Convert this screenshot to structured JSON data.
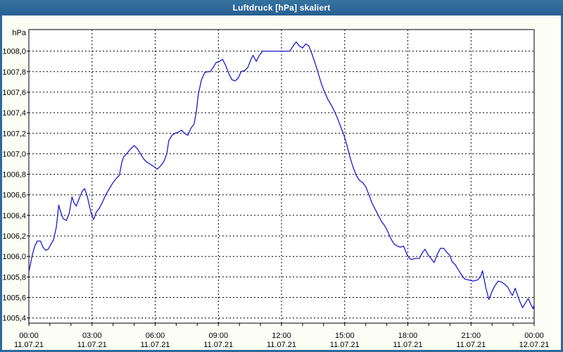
{
  "title_bar": {
    "title": "Luftdruck [hPa] skaliert",
    "bg_color": "#2b6a9e",
    "text_color": "#ffffff"
  },
  "chart_data": {
    "type": "line",
    "title": "Luftdruck [hPa] skaliert",
    "ylabel": "hPa",
    "grid": "dashed",
    "legend": "none",
    "plot_bg": "#ffffff",
    "panel_bg": "#fcfdf5",
    "line_color": "#1b1bd1",
    "ylim": [
      1005.35,
      1008.21
    ],
    "xlim_hours": [
      0,
      24
    ],
    "minor_x_tick_every_hours": 1,
    "yticks": [
      {
        "value": 1008.0,
        "label": "1008,0"
      },
      {
        "value": 1007.8,
        "label": "1007,8"
      },
      {
        "value": 1007.6,
        "label": "1007,6"
      },
      {
        "value": 1007.4,
        "label": "1007,4"
      },
      {
        "value": 1007.2,
        "label": "1007,2"
      },
      {
        "value": 1007.0,
        "label": "1007,0"
      },
      {
        "value": 1006.8,
        "label": "1006,8"
      },
      {
        "value": 1006.6,
        "label": "1006,6"
      },
      {
        "value": 1006.4,
        "label": "1006,4"
      },
      {
        "value": 1006.2,
        "label": "1006,2"
      },
      {
        "value": 1006.0,
        "label": "1006,0"
      },
      {
        "value": 1005.8,
        "label": "1005,8"
      },
      {
        "value": 1005.6,
        "label": "1005,6"
      },
      {
        "value": 1005.4,
        "label": "1005,4"
      }
    ],
    "xticks": [
      {
        "hour": 0,
        "time": "00:00",
        "date": "11.07.21"
      },
      {
        "hour": 3,
        "time": "03:00",
        "date": "11.07.21"
      },
      {
        "hour": 6,
        "time": "06:00",
        "date": "11.07.21"
      },
      {
        "hour": 9,
        "time": "09:00",
        "date": "11.07.21"
      },
      {
        "hour": 12,
        "time": "12:00",
        "date": "11.07.21"
      },
      {
        "hour": 15,
        "time": "15:00",
        "date": "11.07.21"
      },
      {
        "hour": 18,
        "time": "18:00",
        "date": "11.07.21"
      },
      {
        "hour": 21,
        "time": "21:00",
        "date": "11.07.21"
      },
      {
        "hour": 24,
        "time": "00:00",
        "date": "12.07.21"
      }
    ],
    "series": [
      {
        "name": "Luftdruck [hPa]",
        "color": "#1b1bd1",
        "points": [
          [
            0.0,
            1005.85
          ],
          [
            0.08,
            1005.93
          ],
          [
            0.17,
            1006.02
          ],
          [
            0.28,
            1006.1
          ],
          [
            0.4,
            1006.15
          ],
          [
            0.55,
            1006.15
          ],
          [
            0.67,
            1006.09
          ],
          [
            0.8,
            1006.06
          ],
          [
            0.92,
            1006.07
          ],
          [
            1.05,
            1006.12
          ],
          [
            1.17,
            1006.16
          ],
          [
            1.3,
            1006.28
          ],
          [
            1.42,
            1006.5
          ],
          [
            1.5,
            1006.44
          ],
          [
            1.62,
            1006.37
          ],
          [
            1.78,
            1006.35
          ],
          [
            1.92,
            1006.42
          ],
          [
            2.05,
            1006.58
          ],
          [
            2.15,
            1006.52
          ],
          [
            2.25,
            1006.49
          ],
          [
            2.4,
            1006.57
          ],
          [
            2.55,
            1006.64
          ],
          [
            2.65,
            1006.66
          ],
          [
            2.78,
            1006.58
          ],
          [
            2.9,
            1006.47
          ],
          [
            3.0,
            1006.39
          ],
          [
            3.08,
            1006.36
          ],
          [
            3.2,
            1006.43
          ],
          [
            3.35,
            1006.47
          ],
          [
            3.5,
            1006.53
          ],
          [
            3.65,
            1006.6
          ],
          [
            3.85,
            1006.67
          ],
          [
            4.0,
            1006.72
          ],
          [
            4.15,
            1006.76
          ],
          [
            4.3,
            1006.79
          ],
          [
            4.42,
            1006.92
          ],
          [
            4.5,
            1006.97
          ],
          [
            4.65,
            1007.0
          ],
          [
            4.8,
            1007.04
          ],
          [
            5.0,
            1007.08
          ],
          [
            5.15,
            1007.05
          ],
          [
            5.3,
            1007.0
          ],
          [
            5.45,
            1006.95
          ],
          [
            5.6,
            1006.92
          ],
          [
            5.75,
            1006.9
          ],
          [
            5.9,
            1006.88
          ],
          [
            6.1,
            1006.85
          ],
          [
            6.25,
            1006.88
          ],
          [
            6.4,
            1006.92
          ],
          [
            6.55,
            1007.0
          ],
          [
            6.65,
            1007.13
          ],
          [
            6.8,
            1007.18
          ],
          [
            6.95,
            1007.2
          ],
          [
            7.1,
            1007.21
          ],
          [
            7.25,
            1007.23
          ],
          [
            7.4,
            1007.2
          ],
          [
            7.55,
            1007.18
          ],
          [
            7.7,
            1007.25
          ],
          [
            7.85,
            1007.29
          ],
          [
            7.95,
            1007.4
          ],
          [
            8.05,
            1007.58
          ],
          [
            8.2,
            1007.72
          ],
          [
            8.35,
            1007.79
          ],
          [
            8.5,
            1007.8
          ],
          [
            8.62,
            1007.8
          ],
          [
            8.75,
            1007.84
          ],
          [
            8.9,
            1007.89
          ],
          [
            9.05,
            1007.9
          ],
          [
            9.2,
            1007.92
          ],
          [
            9.35,
            1007.86
          ],
          [
            9.5,
            1007.78
          ],
          [
            9.65,
            1007.72
          ],
          [
            9.8,
            1007.71
          ],
          [
            9.95,
            1007.74
          ],
          [
            10.08,
            1007.8
          ],
          [
            10.25,
            1007.81
          ],
          [
            10.4,
            1007.84
          ],
          [
            10.55,
            1007.92
          ],
          [
            10.65,
            1007.96
          ],
          [
            10.8,
            1007.9
          ],
          [
            10.95,
            1007.96
          ],
          [
            11.1,
            1008.0
          ],
          [
            11.5,
            1008.0
          ],
          [
            12.0,
            1008.0
          ],
          [
            12.4,
            1008.0
          ],
          [
            12.55,
            1008.05
          ],
          [
            12.7,
            1008.09
          ],
          [
            12.85,
            1008.05
          ],
          [
            13.0,
            1008.03
          ],
          [
            13.15,
            1008.07
          ],
          [
            13.3,
            1008.05
          ],
          [
            13.45,
            1007.97
          ],
          [
            13.6,
            1007.88
          ],
          [
            13.75,
            1007.78
          ],
          [
            13.9,
            1007.68
          ],
          [
            14.05,
            1007.6
          ],
          [
            14.2,
            1007.53
          ],
          [
            14.35,
            1007.48
          ],
          [
            14.5,
            1007.42
          ],
          [
            14.65,
            1007.35
          ],
          [
            14.8,
            1007.27
          ],
          [
            14.95,
            1007.19
          ],
          [
            15.1,
            1007.09
          ],
          [
            15.25,
            1006.97
          ],
          [
            15.4,
            1006.87
          ],
          [
            15.55,
            1006.79
          ],
          [
            15.7,
            1006.74
          ],
          [
            15.85,
            1006.72
          ],
          [
            16.0,
            1006.68
          ],
          [
            16.15,
            1006.6
          ],
          [
            16.3,
            1006.52
          ],
          [
            16.45,
            1006.46
          ],
          [
            16.6,
            1006.4
          ],
          [
            16.75,
            1006.34
          ],
          [
            16.9,
            1006.3
          ],
          [
            17.05,
            1006.24
          ],
          [
            17.2,
            1006.17
          ],
          [
            17.35,
            1006.12
          ],
          [
            17.5,
            1006.1
          ],
          [
            17.65,
            1006.09
          ],
          [
            17.8,
            1006.1
          ],
          [
            17.9,
            1006.05
          ],
          [
            18.0,
            1006.0
          ],
          [
            18.15,
            1005.97
          ],
          [
            18.35,
            1005.98
          ],
          [
            18.55,
            1005.98
          ],
          [
            18.7,
            1006.04
          ],
          [
            18.82,
            1006.07
          ],
          [
            18.95,
            1006.02
          ],
          [
            19.1,
            1005.98
          ],
          [
            19.25,
            1005.94
          ],
          [
            19.4,
            1006.02
          ],
          [
            19.55,
            1006.08
          ],
          [
            19.7,
            1006.08
          ],
          [
            19.85,
            1006.04
          ],
          [
            20.0,
            1006.01
          ],
          [
            20.1,
            1005.95
          ],
          [
            20.25,
            1005.92
          ],
          [
            20.4,
            1005.87
          ],
          [
            20.55,
            1005.82
          ],
          [
            20.7,
            1005.78
          ],
          [
            20.9,
            1005.77
          ],
          [
            21.1,
            1005.76
          ],
          [
            21.3,
            1005.77
          ],
          [
            21.45,
            1005.8
          ],
          [
            21.55,
            1005.86
          ],
          [
            21.7,
            1005.7
          ],
          [
            21.85,
            1005.58
          ],
          [
            22.0,
            1005.66
          ],
          [
            22.15,
            1005.72
          ],
          [
            22.3,
            1005.76
          ],
          [
            22.45,
            1005.75
          ],
          [
            22.6,
            1005.73
          ],
          [
            22.75,
            1005.7
          ],
          [
            22.9,
            1005.64
          ],
          [
            22.97,
            1005.62
          ],
          [
            23.1,
            1005.69
          ],
          [
            23.2,
            1005.63
          ],
          [
            23.32,
            1005.56
          ],
          [
            23.45,
            1005.5
          ],
          [
            23.6,
            1005.55
          ],
          [
            23.72,
            1005.59
          ],
          [
            23.85,
            1005.53
          ],
          [
            23.95,
            1005.49
          ],
          [
            24.0,
            1005.53
          ]
        ]
      }
    ]
  }
}
